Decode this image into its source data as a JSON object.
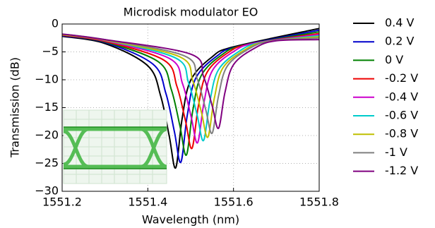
{
  "chart_data": {
    "type": "line",
    "title": "Microdisk modulator EO",
    "x_label": "Wavelength (nm)",
    "y_label": "Transmission (dB)",
    "xlim": [
      1551.2,
      1551.8
    ],
    "xticks": [
      1551.2,
      1551.4,
      1551.6,
      1551.8
    ],
    "ylim": [
      -30,
      0
    ],
    "yticks": [
      {
        "value": 0,
        "label": "0"
      },
      {
        "value": -5,
        "label": "−5"
      },
      {
        "value": -10,
        "label": "−10"
      },
      {
        "value": -15,
        "label": "−15"
      },
      {
        "value": -20,
        "label": "−20"
      },
      {
        "value": -25,
        "label": "−25"
      },
      {
        "value": -30,
        "label": "−30"
      }
    ],
    "grid": true,
    "series": [
      {
        "name": "0.4 V",
        "color": "#000000",
        "x": [
          1551.2,
          1551.3,
          1551.4,
          1551.43,
          1551.45,
          1551.465,
          1551.48,
          1551.5,
          1551.55,
          1551.6,
          1551.8
        ],
        "values": [
          -2.2,
          -3.5,
          -7.5,
          -12.9,
          -20.1,
          -25.8,
          -17,
          -10.1,
          -5.9,
          -4.1,
          -0.8
        ]
      },
      {
        "name": "0.2 V",
        "color": "#0000cc",
        "x": [
          1551.2,
          1551.3,
          1551.412,
          1551.442,
          1551.462,
          1551.477,
          1551.492,
          1551.512,
          1551.562,
          1551.612,
          1551.8
        ],
        "values": [
          -2.1,
          -3.3,
          -7.2,
          -12.4,
          -19.3,
          -24.8,
          -16.4,
          -9.7,
          -5.7,
          -4,
          -1.1
        ]
      },
      {
        "name": "0 V",
        "color": "#008000",
        "x": [
          1551.2,
          1551.3,
          1551.425,
          1551.455,
          1551.475,
          1551.49,
          1551.505,
          1551.525,
          1551.575,
          1551.625,
          1551.8
        ],
        "values": [
          -2,
          -3.2,
          -6.8,
          -11.8,
          -18.3,
          -23.5,
          -15.5,
          -9.2,
          -5.4,
          -3.8,
          -1.4
        ]
      },
      {
        "name": "-0.2 V",
        "color": "#ee0000",
        "x": [
          1551.2,
          1551.3,
          1551.438,
          1551.468,
          1551.488,
          1551.503,
          1551.518,
          1551.538,
          1551.588,
          1551.638,
          1551.8
        ],
        "values": [
          -2,
          -3.1,
          -6.5,
          -11.2,
          -17.4,
          -22.3,
          -14.7,
          -8.7,
          -5.1,
          -3.6,
          -1.7
        ]
      },
      {
        "name": "-0.4 V",
        "color": "#cc00cc",
        "x": [
          1551.2,
          1551.3,
          1551.451,
          1551.481,
          1551.501,
          1551.516,
          1551.531,
          1551.551,
          1551.601,
          1551.651,
          1551.8
        ],
        "values": [
          -1.9,
          -3,
          -6.2,
          -10.7,
          -16.6,
          -21.3,
          -14.1,
          -8.3,
          -4.9,
          -3.4,
          -1.9
        ]
      },
      {
        "name": "-0.6 V",
        "color": "#00cccc",
        "x": [
          1551.2,
          1551.3,
          1551.465,
          1551.495,
          1551.515,
          1551.53,
          1551.545,
          1551.565,
          1551.615,
          1551.665,
          1551.8
        ],
        "values": [
          -1.9,
          -2.9,
          -6.1,
          -10.5,
          -16.3,
          -20.9,
          -13.8,
          -8.2,
          -4.8,
          -3.3,
          -2.1
        ]
      },
      {
        "name": "-0.8 V",
        "color": "#bfbf00",
        "x": [
          1551.2,
          1551.3,
          1551.475,
          1551.505,
          1551.525,
          1551.54,
          1551.555,
          1551.575,
          1551.625,
          1551.675,
          1551.8
        ],
        "values": [
          -1.9,
          -2.9,
          -5.9,
          -10.2,
          -15.8,
          -20.3,
          -13.4,
          -7.9,
          -4.7,
          -3.2,
          -2.3
        ]
      },
      {
        "name": "-1 V",
        "color": "#808080",
        "x": [
          1551.2,
          1551.3,
          1551.485,
          1551.515,
          1551.535,
          1551.55,
          1551.565,
          1551.585,
          1551.635,
          1551.685,
          1551.8
        ],
        "values": [
          -1.8,
          -2.8,
          -5.7,
          -9.8,
          -15.3,
          -19.6,
          -12.9,
          -7.6,
          -4.5,
          -3.1,
          -2.5
        ]
      },
      {
        "name": "-1.2 V",
        "color": "#800080",
        "x": [
          1551.2,
          1551.3,
          1551.5,
          1551.53,
          1551.55,
          1551.565,
          1551.58,
          1551.6,
          1551.65,
          1551.7,
          1551.8
        ],
        "values": [
          -1.8,
          -2.8,
          -5.4,
          -9.4,
          -14.6,
          -18.7,
          -12.3,
          -7.3,
          -4.3,
          -3,
          -2.8
        ]
      }
    ]
  }
}
